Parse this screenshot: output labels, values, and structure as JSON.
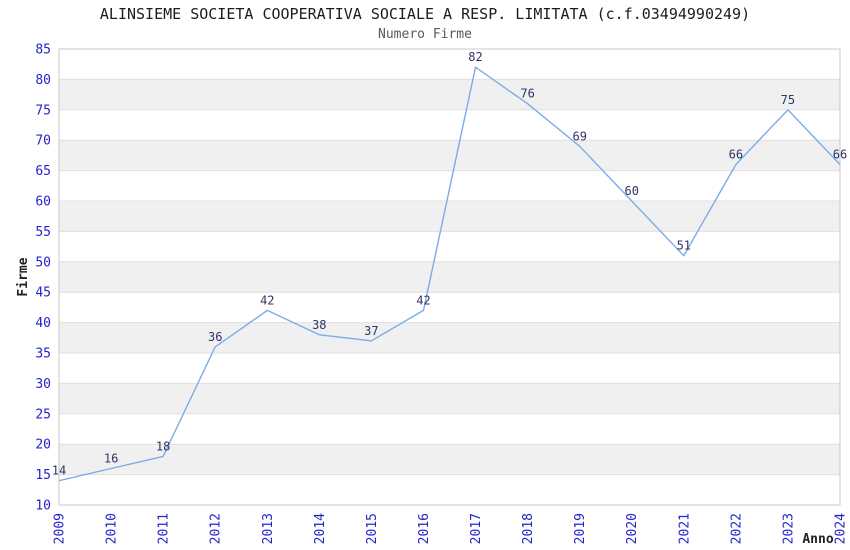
{
  "header": {
    "title": "ALINSIEME SOCIETA COOPERATIVA SOCIALE A RESP. LIMITATA (c.f.03494990249)",
    "subtitle": "Numero Firme"
  },
  "chart_data": {
    "type": "line",
    "title": "ALINSIEME SOCIETA COOPERATIVA SOCIALE A RESP. LIMITATA (c.f.03494990249)",
    "subtitle": "Numero Firme",
    "series": [
      {
        "name": "Numero Firme",
        "values": [
          14,
          16,
          18,
          36,
          42,
          38,
          37,
          42,
          82,
          76,
          69,
          60,
          51,
          66,
          75,
          66
        ]
      }
    ],
    "categories": [
      "2009",
      "2010",
      "2011",
      "2012",
      "2013",
      "2014",
      "2015",
      "2016",
      "2017",
      "2018",
      "2019",
      "2020",
      "2021",
      "2022",
      "2023",
      "2024"
    ],
    "xlabel": "Anno",
    "ylabel": "Firme",
    "ylim": [
      10,
      85
    ],
    "ytick_step": 5,
    "grid": "horizontal-bands-alternating",
    "legend": "none",
    "colors": {
      "line": "#7aade6",
      "tick_label": "#2323cf",
      "data_label": "#333366",
      "band": "#f0f0f0",
      "band_alt": "#ffffff",
      "gridline": "#e0e0e0",
      "plot_border": "#c8c8c8",
      "title": "#1c1c1c",
      "subtitle": "#5a5a5a",
      "axis_label": "#222222"
    }
  }
}
